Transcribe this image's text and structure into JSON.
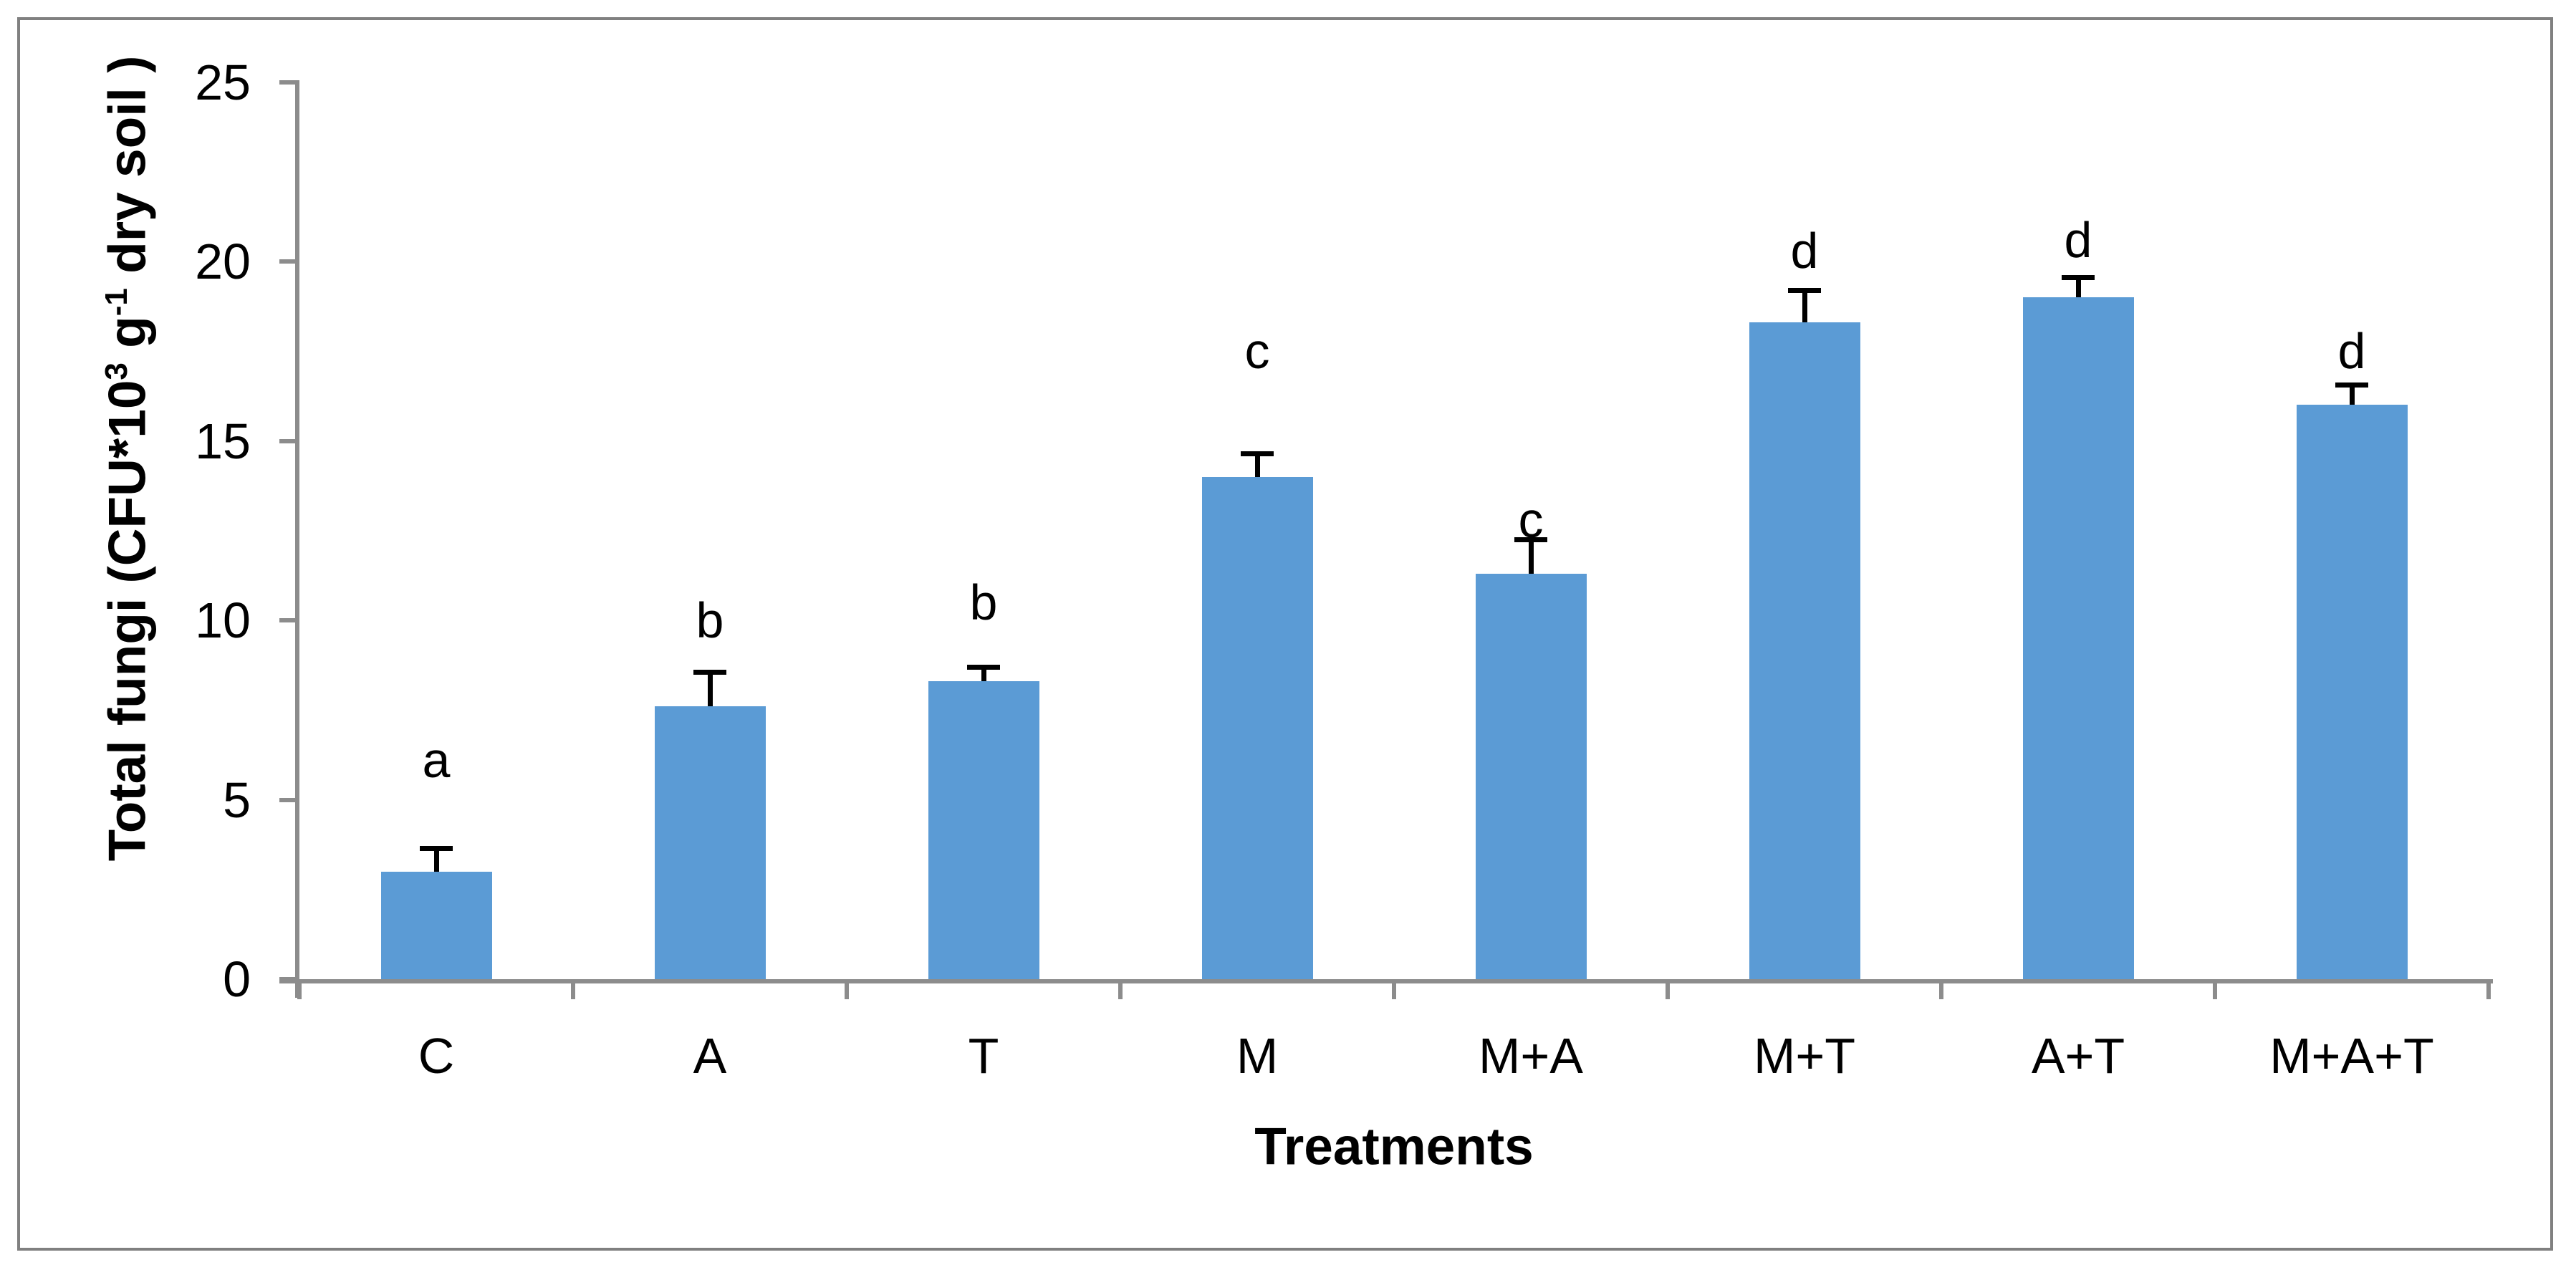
{
  "figure": {
    "background": "#ffffff",
    "border_color": "#808080"
  },
  "chart_data": {
    "type": "bar",
    "title": "",
    "categories": [
      "C",
      "A",
      "T",
      "M",
      "M+A",
      "M+T",
      "A+T",
      "M+A+T"
    ],
    "values": [
      3.0,
      7.6,
      8.3,
      14.0,
      11.3,
      18.3,
      19.0,
      16.0
    ],
    "errors_plus": [
      0.6,
      0.9,
      0.35,
      0.6,
      0.9,
      0.85,
      0.5,
      0.5
    ],
    "sig_letters": [
      "a",
      "b",
      "b",
      "c",
      "c",
      "d",
      "d",
      "d"
    ],
    "sig_letter_y": [
      6.1,
      10.0,
      10.5,
      17.5,
      12.8,
      20.3,
      20.6,
      17.5
    ],
    "xlabel": "Treatments",
    "ylabel": "Total fungi (CFU*10³ g⁻¹ dry soil )",
    "ylabel_parts": [
      {
        "t": "Total fungi (CFU*10"
      },
      {
        "t": "3",
        "sup": true
      },
      {
        "t": " g"
      },
      {
        "t": "-1",
        "sup": true
      },
      {
        "t": " dry soil )"
      }
    ],
    "yticks": [
      0,
      5,
      10,
      15,
      20,
      25
    ],
    "ylim": [
      0,
      25
    ],
    "grid": false,
    "legend": false,
    "bar_color": "#5B9BD5",
    "axis_color": "#8C8C8C",
    "error_color": "#000000",
    "text_color": "#000000"
  }
}
